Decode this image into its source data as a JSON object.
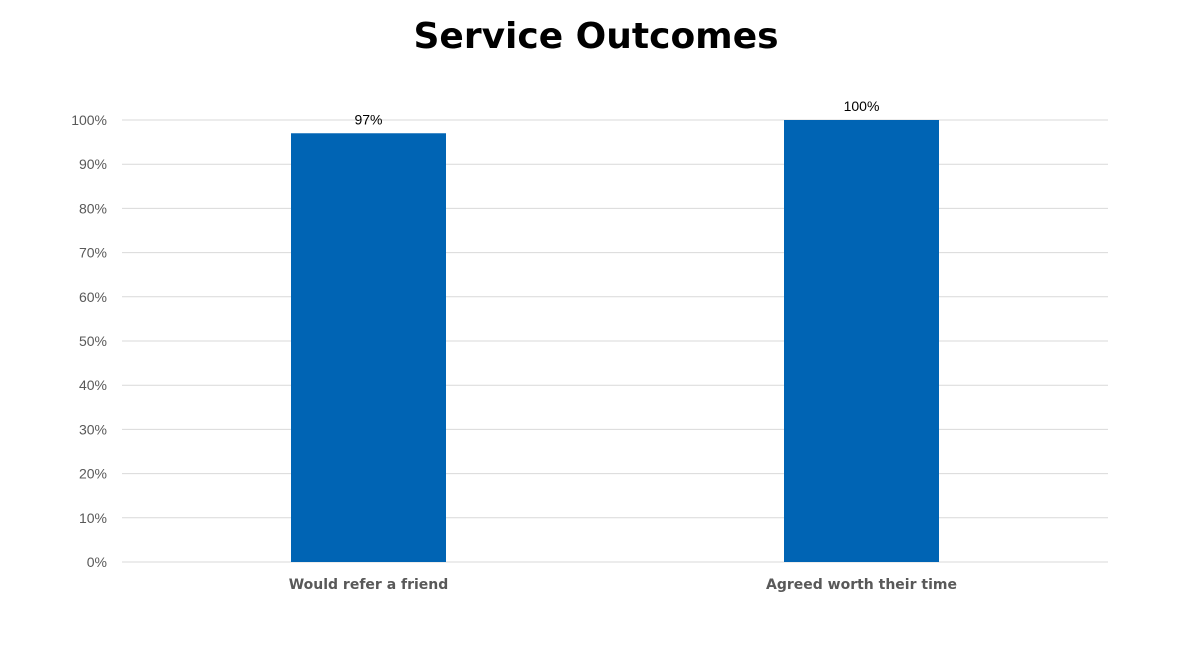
{
  "chart_data": {
    "type": "bar",
    "title": "Service Outcomes",
    "categories": [
      "Would refer a friend",
      "Agreed worth their time"
    ],
    "values": [
      97,
      100
    ],
    "data_labels": [
      "97%",
      "100%"
    ],
    "y_ticks": [
      "0%",
      "10%",
      "20%",
      "30%",
      "40%",
      "50%",
      "60%",
      "70%",
      "80%",
      "90%",
      "100%"
    ],
    "ylim": [
      0,
      100
    ],
    "grid": true,
    "legend": "none",
    "bar_color": "#0064B4",
    "grid_color": "#D9D9D9",
    "tick_label_color": "#595959"
  }
}
